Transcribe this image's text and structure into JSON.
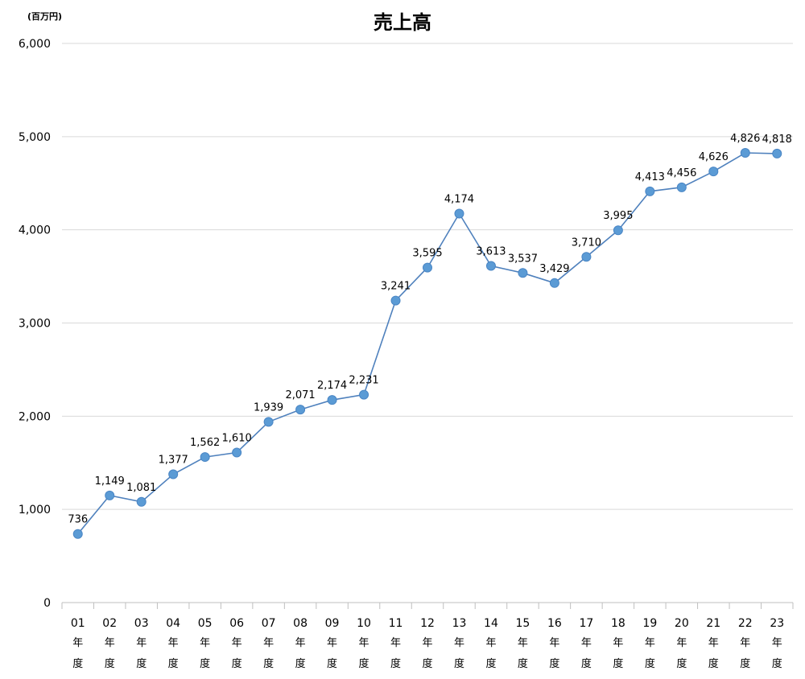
{
  "chart_data": {
    "type": "line",
    "title": "売上高",
    "unit_label": "(百万円)",
    "categories": [
      "01年度",
      "02年度",
      "03年度",
      "04年度",
      "05年度",
      "06年度",
      "07年度",
      "08年度",
      "09年度",
      "10年度",
      "11年度",
      "12年度",
      "13年度",
      "14年度",
      "15年度",
      "16年度",
      "17年度",
      "18年度",
      "19年度",
      "20年度",
      "21年度",
      "22年度",
      "23年度"
    ],
    "category_numbers": [
      "01",
      "02",
      "03",
      "04",
      "05",
      "06",
      "07",
      "08",
      "09",
      "10",
      "11",
      "12",
      "13",
      "14",
      "15",
      "16",
      "17",
      "18",
      "19",
      "20",
      "21",
      "22",
      "23"
    ],
    "category_suffix_chars": [
      "年",
      "度"
    ],
    "values": [
      736,
      1149,
      1081,
      1377,
      1562,
      1610,
      1939,
      2071,
      2174,
      2231,
      3241,
      3595,
      4174,
      3613,
      3537,
      3429,
      3710,
      3995,
      4413,
      4456,
      4626,
      4826,
      4818
    ],
    "value_labels": [
      "736",
      "1,149",
      "1,081",
      "1,377",
      "1,562",
      "1,610",
      "1,939",
      "2,071",
      "2,174",
      "2,231",
      "3,241",
      "3,595",
      "4,174",
      "3,613",
      "3,537",
      "3,429",
      "3,710",
      "3,995",
      "4,413",
      "4,456",
      "4,626",
      "4,826",
      "4,818"
    ],
    "yticks": [
      0,
      1000,
      2000,
      3000,
      4000,
      5000,
      6000
    ],
    "ytick_labels": [
      "0",
      "1,000",
      "2,000",
      "3,000",
      "4,000",
      "5,000",
      "6,000"
    ],
    "ylim": [
      0,
      6000
    ],
    "grid": true,
    "legend": "none",
    "line_color": "#4f81bd",
    "marker_color": "#5b9bd5",
    "grid_color": "#d9d9d9"
  }
}
